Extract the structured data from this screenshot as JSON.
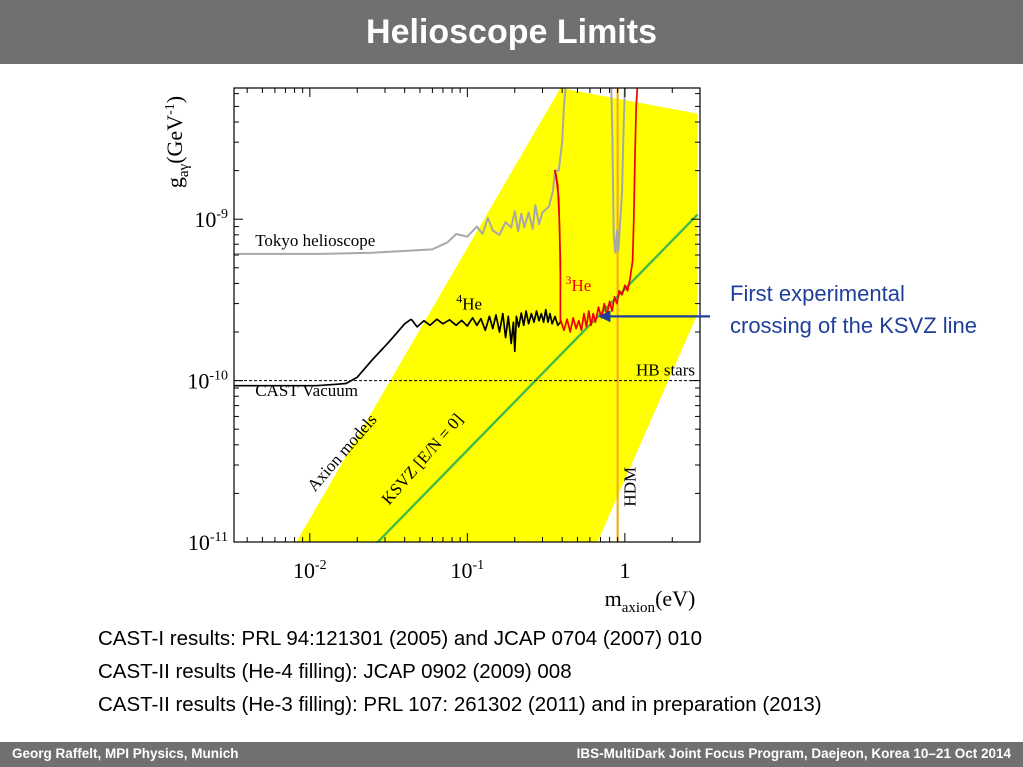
{
  "slide": {
    "title": "Helioscope Limits",
    "annotation": [
      "First experimental",
      "crossing of the KSVZ line"
    ],
    "references": [
      "CAST-I results: PRL 94:121301 (2005) and JCAP 0704 (2007) 010",
      "CAST-II results (He-4 filling): JCAP 0902 (2009) 008",
      "CAST-II results (He-3 filling): PRL 107: 261302 (2011) and in preparation (2013)"
    ],
    "footer_left": "Georg Raffelt, MPI Physics, Munich",
    "footer_right": "IBS-MultiDark Joint Focus Program, Daejeon, Korea 10–21 Oct 2014"
  },
  "chart_data": {
    "type": "line",
    "xscale": "log",
    "yscale": "log",
    "xlim": [
      0.0033,
      3.0
    ],
    "ylim": [
      1e-11,
      6.5e-09
    ],
    "xlabel": {
      "base": "m",
      "sub": "axion",
      "unit": "(eV)"
    },
    "ylabel": {
      "base": "g",
      "sub": "aγ",
      "unit": "(GeV",
      "exp": "-1",
      "close": ")"
    },
    "xticks": [
      {
        "value": 0.01,
        "base": "10",
        "exp": "-2"
      },
      {
        "value": 0.1,
        "base": "10",
        "exp": "-1"
      },
      {
        "value": 1,
        "base": "1",
        "exp": ""
      }
    ],
    "yticks": [
      {
        "value": 1e-11,
        "base": "10",
        "exp": "-11"
      },
      {
        "value": 1e-10,
        "base": "10",
        "exp": "-10"
      },
      {
        "value": 1e-09,
        "base": "10",
        "exp": "-9"
      }
    ],
    "colors": {
      "band": "#ffff00",
      "ksvz": "#44bb44",
      "tokyo": "#a8a8a8",
      "he4": "#000000",
      "he3": "#ee0000",
      "hdm": "#f0b020",
      "hb": "#000000",
      "arrow": "#1f3f9a"
    },
    "axion_band": {
      "label": "Axion models",
      "polygon": [
        [
          0.0072,
          1e-11
        ],
        [
          0.67,
          1e-11
        ],
        [
          2.9,
          2.6e-10
        ],
        [
          2.9,
          4.5e-09
        ],
        [
          0.39,
          6.5e-09
        ],
        [
          0.0082,
          1e-11
        ]
      ]
    },
    "ksvz_line": {
      "label": "KSVZ [E/N = 0]",
      "points": [
        [
          0.027,
          1e-11
        ],
        [
          2.9,
          1.07e-09
        ]
      ]
    },
    "hb_stars": {
      "label": "HB stars",
      "y": 1e-10
    },
    "hdm": {
      "label": "HDM",
      "x": 0.9,
      "ymin": 1e-11,
      "ymax": 6.5e-09
    },
    "series": [
      {
        "name": "Tokyo helioscope",
        "points": [
          [
            0.0033,
            6.1e-10
          ],
          [
            0.012,
            6.1e-10
          ],
          [
            0.025,
            6.2e-10
          ],
          [
            0.06,
            6.5e-10
          ],
          [
            0.075,
            7.2e-10
          ],
          [
            0.085,
            8.1e-10
          ],
          [
            0.1,
            7.8e-10
          ],
          [
            0.115,
            9e-10
          ],
          [
            0.125,
            8.1e-10
          ],
          [
            0.135,
            1.02e-09
          ],
          [
            0.145,
            8.5e-10
          ],
          [
            0.16,
            8e-10
          ],
          [
            0.175,
            9.6e-10
          ],
          [
            0.19,
            8.9e-10
          ],
          [
            0.2,
            1.12e-09
          ],
          [
            0.21,
            8.4e-10
          ],
          [
            0.22,
            1.08e-09
          ],
          [
            0.23,
            8.9e-10
          ],
          [
            0.245,
            1.1e-09
          ],
          [
            0.26,
            8.7e-10
          ],
          [
            0.27,
            1.22e-09
          ],
          [
            0.285,
            9.3e-10
          ],
          [
            0.3,
            1.1e-09
          ],
          [
            0.33,
            1.2e-09
          ],
          [
            0.35,
            1.5e-09
          ],
          [
            0.36,
            2e-09
          ],
          [
            0.38,
            2e-09
          ],
          [
            0.4,
            3e-09
          ],
          [
            0.41,
            5e-09
          ],
          [
            0.42,
            6.5e-09
          ]
        ]
      },
      {
        "name": "Tokyo helioscope",
        "points": [
          [
            0.82,
            6.5e-09
          ],
          [
            0.835,
            3e-09
          ],
          [
            0.85,
            8e-10
          ],
          [
            0.87,
            6.2e-10
          ],
          [
            0.89,
            8.5e-10
          ],
          [
            0.91,
            6.4e-10
          ],
          [
            0.93,
            9e-10
          ],
          [
            0.96,
            1.5e-09
          ],
          [
            0.98,
            3.5e-09
          ],
          [
            1.0,
            6.5e-09
          ]
        ]
      },
      {
        "name": "CAST Vacuum",
        "points": [
          [
            0.0033,
            9.3e-11
          ],
          [
            0.011,
            9.3e-11
          ],
          [
            0.015,
            9.5e-11
          ],
          [
            0.017,
            9.6e-11
          ],
          [
            0.02,
            1.05e-10
          ],
          [
            0.025,
            1.35e-10
          ],
          [
            0.032,
            1.75e-10
          ],
          [
            0.04,
            2.25e-10
          ],
          [
            0.044,
            2.4e-10
          ]
        ]
      },
      {
        "name": "4He",
        "points": [
          [
            0.044,
            2.4e-10
          ],
          [
            0.048,
            2.15e-10
          ],
          [
            0.053,
            2.35e-10
          ],
          [
            0.058,
            2.2e-10
          ],
          [
            0.064,
            2.4e-10
          ],
          [
            0.07,
            2.25e-10
          ],
          [
            0.077,
            2.38e-10
          ],
          [
            0.085,
            2.2e-10
          ],
          [
            0.092,
            2.36e-10
          ],
          [
            0.1,
            2.18e-10
          ],
          [
            0.108,
            2.45e-10
          ],
          [
            0.115,
            2.2e-10
          ],
          [
            0.122,
            2.42e-10
          ],
          [
            0.13,
            2.05e-10
          ],
          [
            0.138,
            2.5e-10
          ],
          [
            0.145,
            2.1e-10
          ],
          [
            0.152,
            2.55e-10
          ],
          [
            0.16,
            2e-10
          ],
          [
            0.168,
            2.6e-10
          ],
          [
            0.175,
            1.85e-10
          ],
          [
            0.182,
            2.5e-10
          ],
          [
            0.19,
            1.7e-10
          ],
          [
            0.196,
            2.3e-10
          ],
          [
            0.2,
            1.52e-10
          ],
          [
            0.205,
            2.5e-10
          ],
          [
            0.212,
            2.15e-10
          ],
          [
            0.22,
            2.62e-10
          ],
          [
            0.228,
            2.2e-10
          ],
          [
            0.236,
            2.7e-10
          ],
          [
            0.245,
            2.25e-10
          ],
          [
            0.255,
            2.6e-10
          ],
          [
            0.265,
            2.3e-10
          ],
          [
            0.275,
            2.7e-10
          ],
          [
            0.285,
            2.35e-10
          ],
          [
            0.295,
            2.6e-10
          ],
          [
            0.305,
            2.3e-10
          ],
          [
            0.315,
            2.75e-10
          ],
          [
            0.325,
            2.3e-10
          ],
          [
            0.335,
            2.6e-10
          ],
          [
            0.345,
            2.25e-10
          ],
          [
            0.36,
            2.5e-10
          ],
          [
            0.375,
            2.2e-10
          ],
          [
            0.39,
            2.3e-10
          ]
        ]
      },
      {
        "name": "3He",
        "points": [
          [
            0.39,
            2.3e-10
          ],
          [
            0.39,
            4.5e-10
          ],
          [
            0.385,
            9e-10
          ],
          [
            0.375,
            1.6e-09
          ],
          [
            0.365,
            1.9e-09
          ],
          [
            0.36,
            2e-09
          ],
          [
            0.37,
            1.7e-09
          ],
          [
            0.38,
            1.35e-09
          ],
          [
            0.39,
            5.5e-10
          ],
          [
            0.39,
            2.4e-10
          ],
          [
            0.41,
            2.05e-10
          ],
          [
            0.43,
            2.4e-10
          ],
          [
            0.45,
            2e-10
          ],
          [
            0.47,
            2.45e-10
          ],
          [
            0.49,
            2.1e-10
          ],
          [
            0.51,
            2.35e-10
          ],
          [
            0.53,
            2.05e-10
          ],
          [
            0.55,
            2.6e-10
          ],
          [
            0.57,
            2.15e-10
          ],
          [
            0.59,
            2.7e-10
          ],
          [
            0.61,
            2.2e-10
          ],
          [
            0.63,
            2.6e-10
          ],
          [
            0.65,
            2.3e-10
          ],
          [
            0.68,
            2.85e-10
          ],
          [
            0.71,
            2.45e-10
          ],
          [
            0.74,
            3e-10
          ],
          [
            0.77,
            2.55e-10
          ],
          [
            0.8,
            3.1e-10
          ],
          [
            0.83,
            2.7e-10
          ],
          [
            0.86,
            3.3e-10
          ],
          [
            0.89,
            3e-10
          ],
          [
            0.92,
            3.6e-10
          ],
          [
            0.96,
            3.4e-10
          ],
          [
            1.0,
            3.9e-10
          ],
          [
            1.04,
            3.6e-10
          ],
          [
            1.08,
            4.3e-10
          ],
          [
            1.12,
            5.5e-10
          ],
          [
            1.14,
            1e-09
          ],
          [
            1.16,
            2.5e-09
          ],
          [
            1.18,
            5e-09
          ],
          [
            1.2,
            6.5e-09
          ]
        ]
      }
    ],
    "labels": [
      {
        "text": "Tokyo helioscope",
        "x": 0.0045,
        "y": 6.8e-10
      },
      {
        "text": "CAST Vacuum",
        "x": 0.0045,
        "y": 8e-11
      },
      {
        "sup": "4",
        "text": "He",
        "x": 0.085,
        "y": 2.75e-10,
        "color": "he4"
      },
      {
        "sup": "3",
        "text": "He",
        "x": 0.42,
        "y": 3.6e-10,
        "color": "he3"
      }
    ],
    "arrow": {
      "from": [
        1.2,
        2.5e-10
      ],
      "to": [
        0.68,
        2.5e-10
      ]
    }
  }
}
